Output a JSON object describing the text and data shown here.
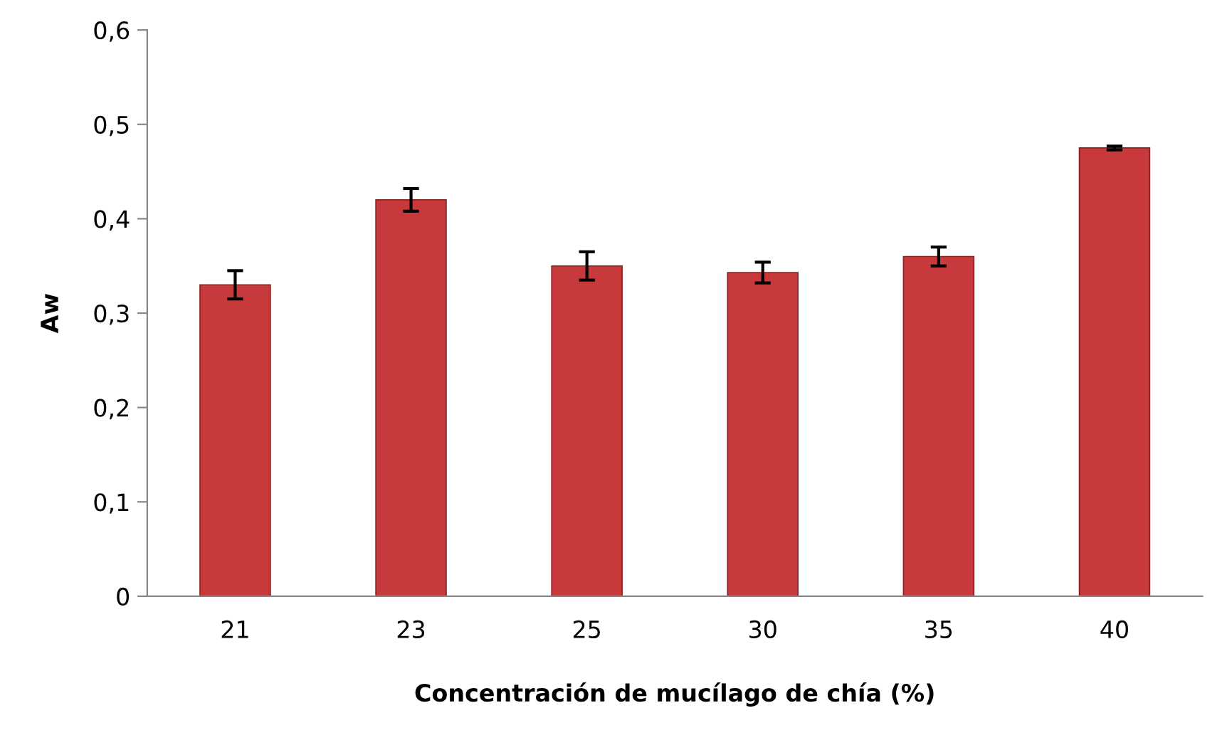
{
  "chart_data": {
    "type": "bar",
    "xlabel": "Concentración de mucílago de chía (%)",
    "ylabel": "Aw",
    "categories": [
      "21",
      "23",
      "25",
      "30",
      "35",
      "40"
    ],
    "values": [
      0.33,
      0.42,
      0.35,
      0.343,
      0.36,
      0.475
    ],
    "errors": [
      0.015,
      0.012,
      0.015,
      0.011,
      0.01,
      0.002
    ],
    "color": "#c8393b",
    "ylim": [
      0,
      0.6
    ],
    "yticks": [
      {
        "value": 0,
        "label": "0"
      },
      {
        "value": 0.1,
        "label": "0,1"
      },
      {
        "value": 0.2,
        "label": "0,2"
      },
      {
        "value": 0.3,
        "label": "0,3"
      },
      {
        "value": 0.4,
        "label": "0,4"
      },
      {
        "value": 0.5,
        "label": "0,5"
      },
      {
        "value": 0.6,
        "label": "0,6"
      }
    ],
    "grid": false,
    "legend": false
  }
}
